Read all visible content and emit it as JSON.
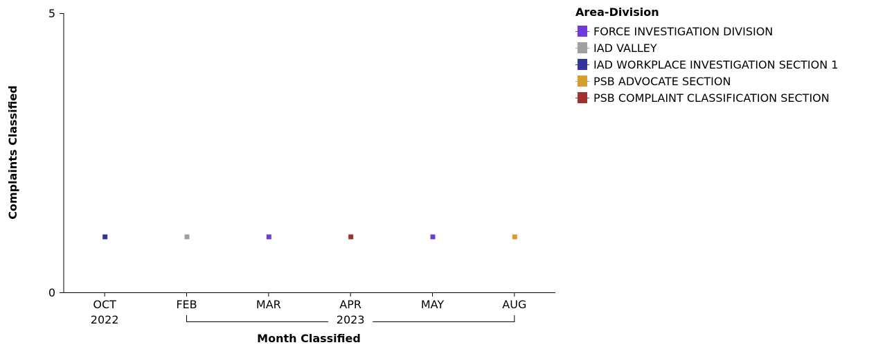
{
  "chart_data": {
    "type": "scatter",
    "ylabel": "Complaints Classified",
    "xlabel": "Month Classified",
    "ylim": [
      0,
      5
    ],
    "y_ticks": [
      "0",
      "5"
    ],
    "categories": [
      {
        "month": "OCT",
        "year": "2022"
      },
      {
        "month": "FEB",
        "year": ""
      },
      {
        "month": "MAR",
        "year": ""
      },
      {
        "month": "APR",
        "year": ""
      },
      {
        "month": "MAY",
        "year": ""
      },
      {
        "month": "AUG",
        "year": ""
      }
    ],
    "year_groups": [
      {
        "label": "2023",
        "from": 1,
        "to": 5
      }
    ],
    "legend_title": "Area-Division",
    "legend_placement": "top-right",
    "grid": false,
    "series": [
      {
        "name": "FORCE INVESTIGATION DIVISION",
        "color": "#6f3cdb",
        "points": [
          {
            "category": "MAR",
            "value": 1
          },
          {
            "category": "MAY",
            "value": 1
          }
        ]
      },
      {
        "name": "IAD VALLEY",
        "color": "#a0a0a0",
        "points": [
          {
            "category": "FEB",
            "value": 1
          }
        ]
      },
      {
        "name": "IAD WORKPLACE INVESTIGATION SECTION 1",
        "color": "#33339c",
        "points": [
          {
            "category": "OCT",
            "value": 1
          }
        ]
      },
      {
        "name": "PSB ADVOCATE SECTION",
        "color": "#d69e2e",
        "points": [
          {
            "category": "AUG",
            "value": 1
          }
        ]
      },
      {
        "name": "PSB COMPLAINT CLASSIFICATION SECTION",
        "color": "#a0322e",
        "points": [
          {
            "category": "APR",
            "value": 1
          }
        ]
      }
    ]
  }
}
